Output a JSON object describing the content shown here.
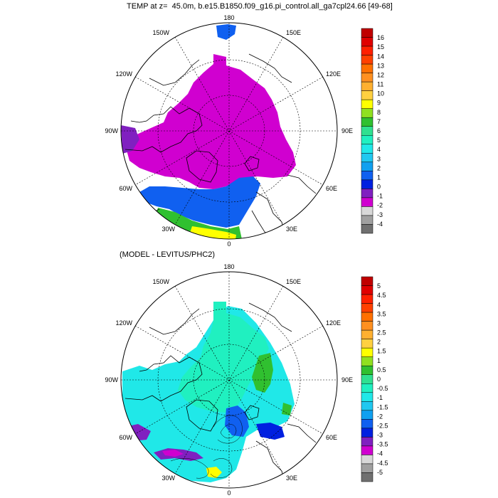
{
  "top_panel": {
    "title": "TEMP at z=  45.0m, b.e15.B1850.f09_g16.pi_control.all_ga7cpl24.66 [49-68]",
    "meridian_labels": {
      "top": "180",
      "left": "90W",
      "right": "90E",
      "bottom": "0",
      "ul1": "150W",
      "ul2": "120W",
      "ur1": "150E",
      "ur2": "120E",
      "ll1": "60W",
      "ll2": "30W",
      "lr1": "60E",
      "lr2": "30E"
    },
    "colorbar": {
      "labels": [
        "16",
        "15",
        "14",
        "13",
        "12",
        "11",
        "10",
        "9",
        "8",
        "7",
        "6",
        "5",
        "4",
        "3",
        "2",
        "1",
        "0",
        "-1",
        "-2",
        "-3",
        "-4"
      ],
      "colors": [
        "#c00000",
        "#e00000",
        "#ff2000",
        "#ff4000",
        "#ff7000",
        "#ff9020",
        "#ffb030",
        "#ffd040",
        "#ffff00",
        "#90e020",
        "#30c030",
        "#30e090",
        "#20f0c0",
        "#20e8e8",
        "#20c8f0",
        "#10a0f0",
        "#1060f0",
        "#0020e0",
        "#8020c0",
        "#d000d0",
        "#d8d8d8",
        "#a0a0a0",
        "#707070"
      ]
    },
    "region_colors": {
      "arctic": "#d000d0",
      "atlantic_cold": "#1060f0",
      "atlantic_warm": "#30c030",
      "atlantic_hot": "#ffff00",
      "cyan": "#20e8e8",
      "baffin": "#8020c0"
    }
  },
  "bottom_panel": {
    "title": "(MODEL - LEVITUS/PHC2)",
    "meridian_labels": {
      "top": "180",
      "left": "90W",
      "right": "90E",
      "bottom": "0",
      "ul1": "150W",
      "ul2": "120W",
      "ur1": "150E",
      "ur2": "120E",
      "ll1": "60W",
      "ll2": "30W",
      "lr1": "60E",
      "lr2": "30E"
    },
    "colorbar": {
      "labels": [
        "5",
        "4.5",
        "4",
        "3.5",
        "3",
        "2.5",
        "2",
        "1.5",
        "1",
        "0.5",
        "0",
        "-0.5",
        "-1",
        "-1.5",
        "-2",
        "-2.5",
        "-3",
        "-3.5",
        "-4",
        "-4.5",
        "-5"
      ],
      "colors": [
        "#c00000",
        "#e00000",
        "#ff2000",
        "#ff4000",
        "#ff7000",
        "#ff9020",
        "#ffb030",
        "#ffd040",
        "#ffff00",
        "#90e020",
        "#30c030",
        "#30e090",
        "#20f0c0",
        "#20e8e8",
        "#20c8f0",
        "#10a0f0",
        "#1060f0",
        "#0020e0",
        "#8020c0",
        "#d000d0",
        "#d8d8d8",
        "#a0a0a0",
        "#707070"
      ]
    },
    "region_colors": {
      "arctic": "#20f0c0",
      "cyan": "#20e8e8",
      "light_blue": "#20c8f0",
      "blue": "#1060f0",
      "deep_blue": "#0020e0",
      "green": "#30c030",
      "purple": "#8020c0",
      "magenta": "#d000d0",
      "yellow": "#ffff00"
    }
  }
}
